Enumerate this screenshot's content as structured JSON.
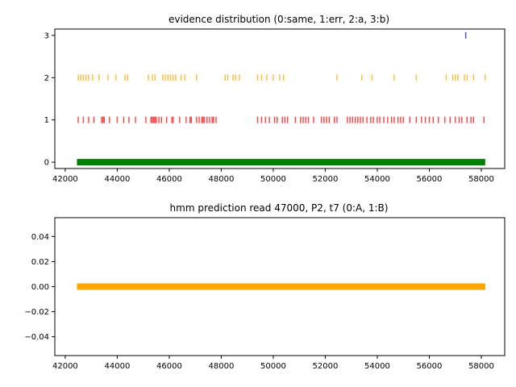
{
  "chart_data": [
    {
      "type": "scatter",
      "marker": "vertical tick",
      "title": "evidence distribution (0:same, 1:err, 2:a, 3:b)",
      "xlabel": "",
      "ylabel": "",
      "xlim": [
        41600,
        58900
      ],
      "ylim": [
        -0.15,
        3.15
      ],
      "xticks": [
        42000,
        44000,
        46000,
        48000,
        50000,
        52000,
        54000,
        56000,
        58000
      ],
      "yticks": [
        0,
        1,
        2,
        3
      ],
      "grid": false,
      "series": [
        {
          "level": 0,
          "color": "#008000",
          "style": "band",
          "x": [
            42450,
            58150
          ]
        },
        {
          "level": 1,
          "color": "#ff0000",
          "x": [
            42500,
            42700,
            42900,
            43100,
            43400,
            43450,
            43500,
            43700,
            44000,
            44250,
            44450,
            44700,
            45100,
            45300,
            45350,
            45400,
            45450,
            45500,
            45600,
            45700,
            45900,
            46100,
            46150,
            46400,
            46650,
            46800,
            46850,
            47050,
            47150,
            47250,
            47300,
            47350,
            47450,
            47550,
            47650,
            47700,
            47800,
            49400,
            49550,
            49700,
            49850,
            50050,
            50150,
            50350,
            50450,
            50550,
            50850,
            51050,
            51150,
            51250,
            51350,
            51550,
            51850,
            51950,
            52050,
            52150,
            52350,
            52450,
            52850,
            52950,
            53050,
            53150,
            53250,
            53350,
            53450,
            53600,
            53750,
            53850,
            54000,
            54100,
            54250,
            54400,
            54550,
            54650,
            54800,
            54900,
            55000,
            55250,
            55500,
            55700,
            55850,
            56000,
            56150,
            56350,
            56600,
            56800,
            57000,
            57150,
            57250,
            57450,
            57600,
            57700,
            58100
          ]
        },
        {
          "level": 2,
          "color": "#ffa500",
          "x": [
            42500,
            42600,
            42700,
            42800,
            42900,
            43050,
            43300,
            43650,
            43950,
            44300,
            44400,
            45200,
            45350,
            45450,
            45750,
            45850,
            45950,
            46050,
            46150,
            46250,
            46450,
            46600,
            47050,
            48150,
            48250,
            48450,
            48550,
            48700,
            49400,
            49550,
            49750,
            50000,
            50250,
            50400,
            52450,
            53400,
            53800,
            54650,
            55500,
            56650,
            56900,
            57000,
            57100,
            57350,
            57450,
            57700,
            58150
          ]
        },
        {
          "level": 3,
          "color": "#0000ff",
          "x": [
            57400
          ]
        }
      ]
    },
    {
      "type": "line",
      "title": "hmm prediction read 47000, P2, t7 (0:A, 1:B)",
      "xlabel": "",
      "ylabel": "",
      "xlim": [
        41600,
        58900
      ],
      "ylim": [
        -0.055,
        0.055
      ],
      "xticks": [
        42000,
        44000,
        46000,
        48000,
        50000,
        52000,
        54000,
        56000,
        58000
      ],
      "yticks": [
        0.04,
        0.02,
        0.0,
        -0.02,
        -0.04
      ],
      "grid": false,
      "series": [
        {
          "color": "#ffa500",
          "style": "band",
          "x": [
            42450,
            58150
          ],
          "y": [
            0,
            0
          ]
        }
      ]
    }
  ],
  "text": {
    "top_title": "evidence distribution (0:same, 1:err, 2:a, 3:b)",
    "bottom_title": "hmm prediction read 47000, P2, t7 (0:A, 1:B)",
    "x_tick_labels": [
      "42000",
      "44000",
      "46000",
      "48000",
      "50000",
      "52000",
      "54000",
      "56000",
      "58000"
    ],
    "top_y_tick_labels": [
      "0",
      "1",
      "2",
      "3"
    ],
    "bottom_y_tick_labels": [
      "0.04",
      "0.02",
      "0.00",
      "−0.02",
      "−0.04"
    ]
  }
}
